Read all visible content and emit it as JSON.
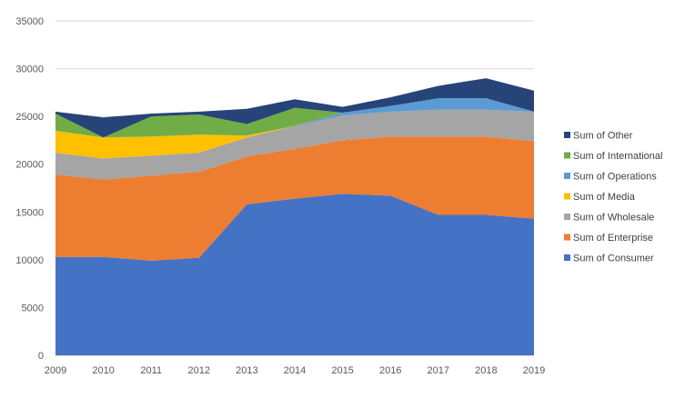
{
  "chart_data": {
    "type": "area",
    "stacked": true,
    "x": [
      "2009",
      "2010",
      "2011",
      "2012",
      "2013",
      "2014",
      "2015",
      "2016",
      "2017",
      "2018",
      "2019"
    ],
    "ylim": [
      0,
      35000
    ],
    "yticks": [
      "0",
      "5000",
      "10000",
      "15000",
      "20000",
      "25000",
      "30000",
      "35000"
    ],
    "grid": true,
    "legend_position": "right",
    "series": [
      {
        "name": "Sum of Consumer",
        "color": "#4472C4",
        "values": [
          10300,
          10300,
          9900,
          10200,
          15800,
          16400,
          16900,
          16700,
          14700,
          14700,
          14300
        ]
      },
      {
        "name": "Sum of Enterprise",
        "color": "#ED7D31",
        "values": [
          8600,
          8100,
          8900,
          9000,
          5000,
          5200,
          5600,
          6200,
          8200,
          8200,
          8100
        ]
      },
      {
        "name": "Sum of Wholesale",
        "color": "#A5A5A5",
        "values": [
          2300,
          2200,
          2100,
          2000,
          2000,
          2400,
          2600,
          2600,
          2800,
          2800,
          3100
        ]
      },
      {
        "name": "Sum of Media",
        "color": "#FFC000",
        "values": [
          2300,
          2200,
          2000,
          1900,
          200,
          0,
          0,
          0,
          0,
          0,
          0
        ]
      },
      {
        "name": "Sum of Operations",
        "color": "#5B9BD5",
        "values": [
          0,
          0,
          0,
          0,
          0,
          0,
          300,
          600,
          1200,
          1200,
          0
        ]
      },
      {
        "name": "Sum of International",
        "color": "#70AD47",
        "values": [
          1800,
          0,
          2100,
          2100,
          1200,
          1900,
          0,
          0,
          0,
          0,
          0
        ]
      },
      {
        "name": "Sum of Other",
        "color": "#264478",
        "values": [
          200,
          2100,
          300,
          300,
          1600,
          900,
          600,
          900,
          1300,
          2100,
          2200
        ]
      }
    ]
  }
}
